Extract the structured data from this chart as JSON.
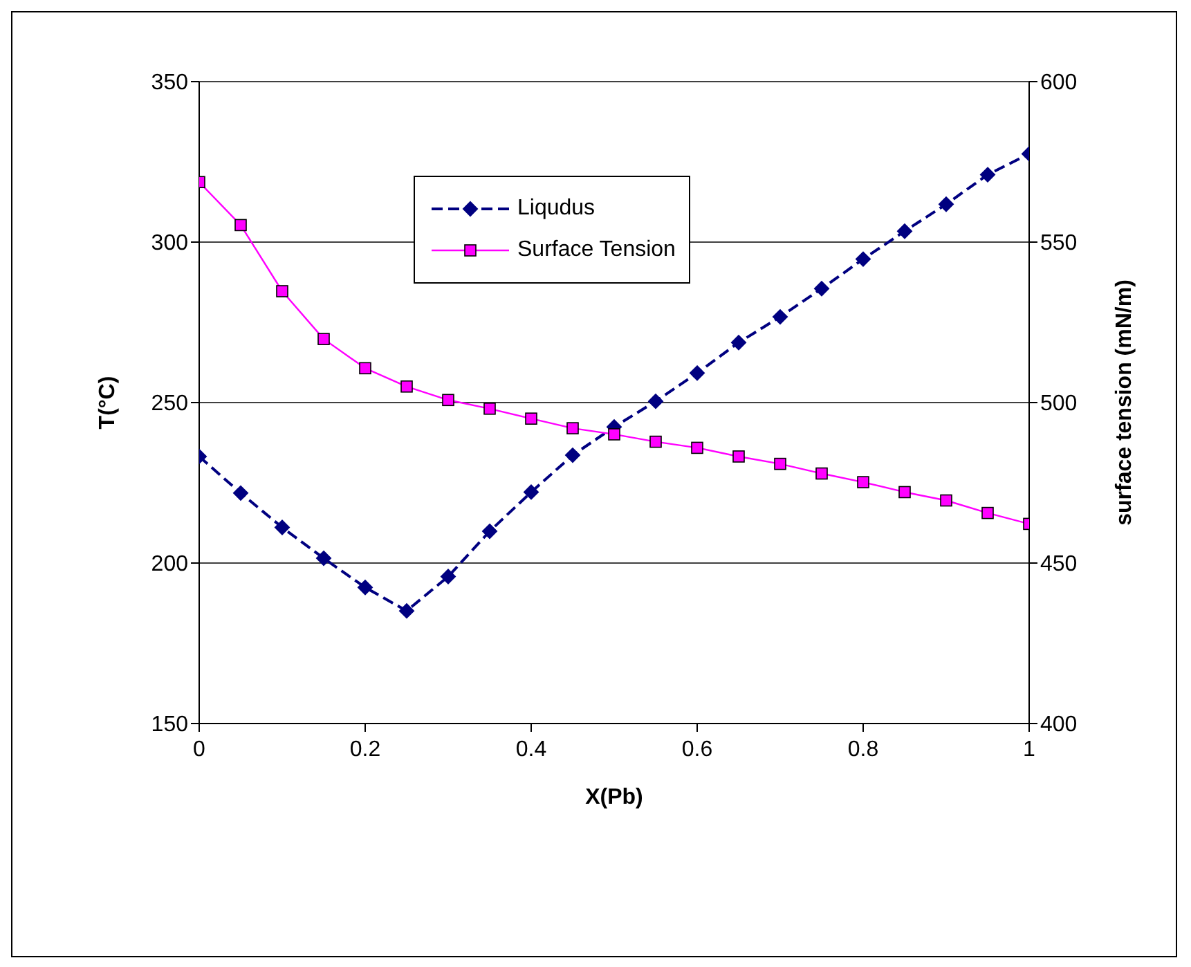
{
  "chart_data": {
    "type": "line",
    "xlabel": "X(Pb)",
    "ylabel": "T(°C)",
    "y2label": "surface tension (mN/m)",
    "x": [
      0,
      0.05,
      0.1,
      0.15,
      0.2,
      0.25,
      0.3,
      0.35,
      0.4,
      0.45,
      0.5,
      0.55,
      0.6,
      0.65,
      0.7,
      0.75,
      0.8,
      0.85,
      0.9,
      0.95,
      1
    ],
    "xlim": [
      0,
      1
    ],
    "xticks": [
      0,
      0.2,
      0.4,
      0.6,
      0.8,
      1
    ],
    "ylim": [
      150,
      350
    ],
    "yticks": [
      150,
      200,
      250,
      300,
      350
    ],
    "y2lim": [
      400,
      600
    ],
    "y2ticks": [
      400,
      450,
      500,
      550,
      600
    ],
    "grid": "y",
    "legend": "top",
    "series": [
      {
        "name": "Liqudus",
        "color": "#000080",
        "marker": "diamond",
        "line_style": "dashed",
        "values": [
          233.2,
          221.8,
          211.1,
          201.5,
          192.4,
          185.1,
          195.8,
          209.9,
          222.1,
          233.6,
          242.4,
          250.4,
          259.2,
          268.7,
          276.7,
          285.5,
          294.7,
          303.4,
          311.8,
          321,
          327.5
        ]
      },
      {
        "name": "Surface Tension",
        "color": "#ff00ff",
        "marker": "square",
        "line_style": "solid",
        "axis": "y2",
        "values": [
          568.7,
          555.3,
          534.7,
          519.8,
          510.7,
          505,
          500.8,
          498.1,
          495,
          492,
          490.1,
          487.8,
          485.9,
          483.2,
          480.9,
          477.9,
          475.2,
          472.1,
          469.5,
          465.6,
          462.2
        ]
      }
    ]
  }
}
